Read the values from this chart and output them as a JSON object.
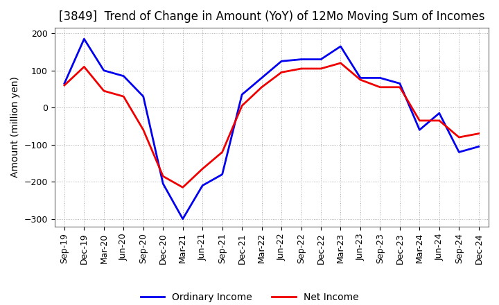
{
  "title": "[3849]  Trend of Change in Amount (YoY) of 12Mo Moving Sum of Incomes",
  "ylabel": "Amount (million yen)",
  "ylim": [
    -320,
    215
  ],
  "yticks": [
    -300,
    -200,
    -100,
    0,
    100,
    200
  ],
  "x_labels": [
    "Sep-19",
    "Dec-19",
    "Mar-20",
    "Jun-20",
    "Sep-20",
    "Dec-20",
    "Mar-21",
    "Jun-21",
    "Sep-21",
    "Dec-21",
    "Mar-22",
    "Jun-22",
    "Sep-22",
    "Dec-22",
    "Mar-23",
    "Jun-23",
    "Sep-23",
    "Dec-23",
    "Mar-24",
    "Jun-24",
    "Sep-24",
    "Dec-24"
  ],
  "ordinary_income": [
    65,
    185,
    100,
    85,
    30,
    -205,
    -300,
    -210,
    -180,
    35,
    80,
    125,
    130,
    130,
    165,
    80,
    80,
    65,
    -60,
    -15,
    -120,
    -105
  ],
  "net_income": [
    60,
    110,
    45,
    30,
    -60,
    -185,
    -215,
    -165,
    -120,
    5,
    55,
    95,
    105,
    105,
    120,
    75,
    55,
    55,
    -35,
    -35,
    -80,
    -70
  ],
  "ordinary_color": "#0000ee",
  "net_color": "#ee0000",
  "legend_labels": [
    "Ordinary Income",
    "Net Income"
  ],
  "background_color": "#ffffff",
  "grid_color": "#aaaaaa",
  "title_fontsize": 12,
  "tick_fontsize": 9,
  "ylabel_fontsize": 10,
  "legend_fontsize": 10,
  "linewidth": 2.0
}
